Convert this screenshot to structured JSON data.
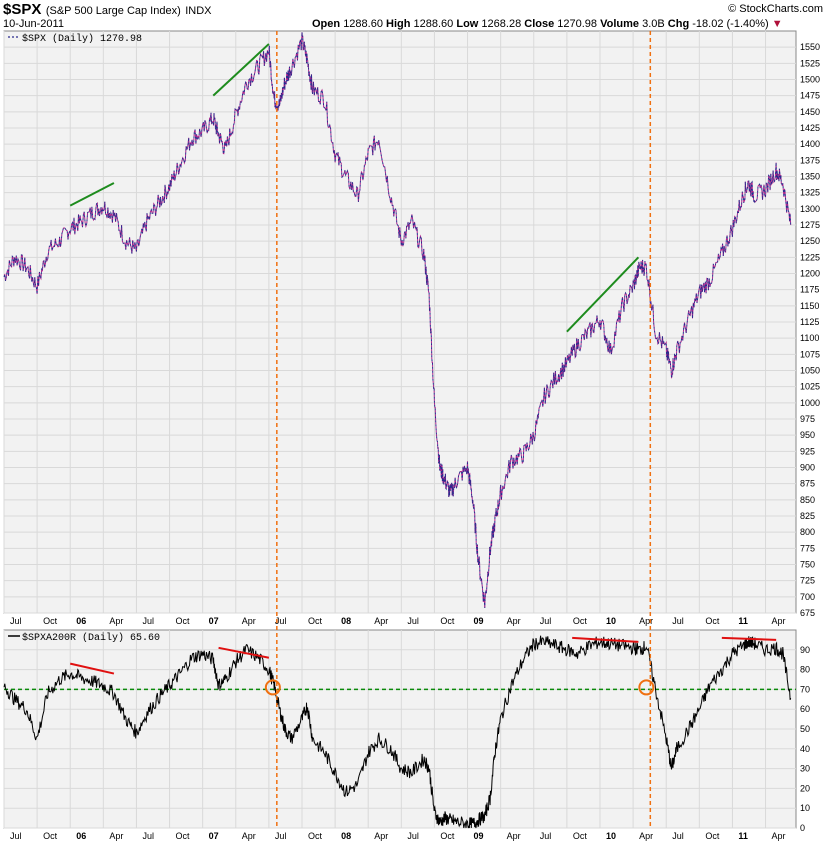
{
  "header": {
    "symbol": "$SPX",
    "description": "(S&P 500 Large Cap Index)",
    "exchange": "INDX",
    "date": "10-Jun-2011",
    "brand": "© StockCharts.com",
    "open_label": "Open",
    "open_value": "1288.60",
    "high_label": "High",
    "high_value": "1288.60",
    "low_label": "Low",
    "low_value": "1268.28",
    "close_label": "Close",
    "close_value": "1270.98",
    "volume_label": "Volume",
    "volume_value": "3.0B",
    "chg_label": "Chg",
    "chg_value": "-18.02 (-1.40%)",
    "chg_arrow": "▼"
  },
  "colors": {
    "panel_bg": "#f2f2f2",
    "grid": "#d9d9d9",
    "price_line": "#2a2a8c",
    "price_line_alt": "#b0208a",
    "breadth_line": "#000000",
    "trend_up": "#1e8c1e",
    "trend_down": "#e01010",
    "threshold": "#0a8a0a",
    "event_line": "#f07010",
    "circle": "#f07010"
  },
  "chart_data": [
    {
      "type": "line",
      "panel": "price",
      "legend": "$SPX (Daily) 1270.98",
      "ylim": [
        675,
        1575
      ],
      "yticks": [
        675,
        700,
        725,
        750,
        775,
        800,
        825,
        850,
        875,
        900,
        925,
        950,
        975,
        1000,
        1025,
        1050,
        1075,
        1100,
        1125,
        1150,
        1175,
        1200,
        1225,
        1250,
        1275,
        1300,
        1325,
        1350,
        1375,
        1400,
        1425,
        1450,
        1475,
        1500,
        1525,
        1550
      ],
      "xlim": [
        2005.5,
        2011.48
      ],
      "series": [
        {
          "x": [
            2005.5,
            2005.58,
            2005.67,
            2005.75,
            2005.83,
            2005.92,
            2006.0,
            2006.08,
            2006.17,
            2006.25,
            2006.33,
            2006.42,
            2006.5,
            2006.58,
            2006.67,
            2006.75,
            2006.83,
            2006.92,
            2007.0,
            2007.08,
            2007.12,
            2007.17,
            2007.25,
            2007.33,
            2007.42,
            2007.5,
            2007.54,
            2007.58,
            2007.62,
            2007.67,
            2007.75,
            2007.79,
            2007.83,
            2007.92,
            2008.0,
            2008.08,
            2008.17,
            2008.25,
            2008.33,
            2008.42,
            2008.5,
            2008.58,
            2008.67,
            2008.71,
            2008.75,
            2008.79,
            2008.83,
            2008.87,
            2008.92,
            2009.0,
            2009.04,
            2009.08,
            2009.13,
            2009.17,
            2009.21,
            2009.25,
            2009.33,
            2009.42,
            2009.5,
            2009.58,
            2009.67,
            2009.75,
            2009.83,
            2009.92,
            2010.0,
            2010.08,
            2010.17,
            2010.25,
            2010.3,
            2010.35,
            2010.42,
            2010.5,
            2010.54,
            2010.58,
            2010.67,
            2010.75,
            2010.83,
            2010.92,
            2011.0,
            2011.08,
            2011.12,
            2011.17,
            2011.25,
            2011.33,
            2011.38,
            2011.44
          ],
          "y": [
            1195,
            1225,
            1210,
            1180,
            1235,
            1250,
            1270,
            1280,
            1295,
            1305,
            1290,
            1250,
            1235,
            1280,
            1310,
            1335,
            1370,
            1410,
            1420,
            1440,
            1415,
            1390,
            1445,
            1495,
            1520,
            1545,
            1470,
            1460,
            1495,
            1520,
            1560,
            1530,
            1485,
            1470,
            1385,
            1350,
            1320,
            1385,
            1410,
            1320,
            1250,
            1280,
            1230,
            1165,
            1000,
            900,
            880,
            860,
            880,
            900,
            850,
            760,
            690,
            770,
            820,
            860,
            910,
            920,
            950,
            1010,
            1040,
            1060,
            1090,
            1110,
            1130,
            1080,
            1150,
            1180,
            1210,
            1210,
            1110,
            1080,
            1050,
            1080,
            1130,
            1170,
            1190,
            1230,
            1270,
            1320,
            1340,
            1320,
            1330,
            1360,
            1340,
            1275
          ]
        }
      ]
    },
    {
      "type": "line",
      "panel": "breadth",
      "legend": "$SPXA200R (Daily) 65.60",
      "ylim": [
        0,
        100
      ],
      "yticks": [
        0,
        10,
        20,
        30,
        40,
        50,
        60,
        70,
        80,
        90
      ],
      "threshold": 70,
      "xlim": [
        2005.5,
        2011.48
      ],
      "series": [
        {
          "x": [
            2005.5,
            2005.58,
            2005.67,
            2005.75,
            2005.83,
            2005.92,
            2006.0,
            2006.08,
            2006.17,
            2006.25,
            2006.33,
            2006.42,
            2006.5,
            2006.58,
            2006.67,
            2006.75,
            2006.83,
            2006.92,
            2007.0,
            2007.08,
            2007.12,
            2007.17,
            2007.25,
            2007.33,
            2007.42,
            2007.5,
            2007.54,
            2007.58,
            2007.62,
            2007.67,
            2007.75,
            2007.79,
            2007.83,
            2007.92,
            2008.0,
            2008.08,
            2008.17,
            2008.25,
            2008.33,
            2008.42,
            2008.5,
            2008.58,
            2008.67,
            2008.71,
            2008.75,
            2008.79,
            2008.83,
            2008.87,
            2008.92,
            2009.0,
            2009.04,
            2009.08,
            2009.13,
            2009.17,
            2009.21,
            2009.25,
            2009.33,
            2009.42,
            2009.5,
            2009.58,
            2009.67,
            2009.75,
            2009.83,
            2009.92,
            2010.0,
            2010.08,
            2010.17,
            2010.25,
            2010.3,
            2010.35,
            2010.42,
            2010.5,
            2010.54,
            2010.58,
            2010.67,
            2010.75,
            2010.83,
            2010.92,
            2011.0,
            2011.08,
            2011.12,
            2011.17,
            2011.25,
            2011.33,
            2011.38,
            2011.44
          ],
          "y": [
            72,
            65,
            60,
            45,
            68,
            75,
            78,
            76,
            74,
            72,
            68,
            55,
            48,
            58,
            66,
            72,
            78,
            86,
            88,
            85,
            72,
            75,
            84,
            90,
            86,
            80,
            72,
            60,
            50,
            45,
            55,
            62,
            45,
            38,
            28,
            18,
            22,
            38,
            45,
            40,
            30,
            28,
            35,
            30,
            8,
            3,
            5,
            4,
            3,
            2,
            2,
            4,
            6,
            15,
            40,
            55,
            72,
            85,
            93,
            94,
            92,
            90,
            88,
            92,
            94,
            93,
            92,
            91,
            90,
            92,
            70,
            45,
            30,
            40,
            50,
            60,
            72,
            80,
            88,
            92,
            94,
            93,
            90,
            91,
            88,
            65.6
          ]
        }
      ]
    }
  ],
  "x_axis_labels": [
    {
      "label": "Jul",
      "t": 2005.5,
      "bold": false
    },
    {
      "label": "Oct",
      "t": 2005.75,
      "bold": false
    },
    {
      "label": "06",
      "t": 2006.0,
      "bold": true
    },
    {
      "label": "Apr",
      "t": 2006.25,
      "bold": false
    },
    {
      "label": "Jul",
      "t": 2006.5,
      "bold": false
    },
    {
      "label": "Oct",
      "t": 2006.75,
      "bold": false
    },
    {
      "label": "07",
      "t": 2007.0,
      "bold": true
    },
    {
      "label": "Apr",
      "t": 2007.25,
      "bold": false
    },
    {
      "label": "Jul",
      "t": 2007.5,
      "bold": false
    },
    {
      "label": "Oct",
      "t": 2007.75,
      "bold": false
    },
    {
      "label": "08",
      "t": 2008.0,
      "bold": true
    },
    {
      "label": "Apr",
      "t": 2008.25,
      "bold": false
    },
    {
      "label": "Jul",
      "t": 2008.5,
      "bold": false
    },
    {
      "label": "Oct",
      "t": 2008.75,
      "bold": false
    },
    {
      "label": "09",
      "t": 2009.0,
      "bold": true
    },
    {
      "label": "Apr",
      "t": 2009.25,
      "bold": false
    },
    {
      "label": "Jul",
      "t": 2009.5,
      "bold": false
    },
    {
      "label": "Oct",
      "t": 2009.75,
      "bold": false
    },
    {
      "label": "10",
      "t": 2010.0,
      "bold": true
    },
    {
      "label": "Apr",
      "t": 2010.25,
      "bold": false
    },
    {
      "label": "Jul",
      "t": 2010.5,
      "bold": false
    },
    {
      "label": "Oct",
      "t": 2010.75,
      "bold": false
    },
    {
      "label": "11",
      "t": 2011.0,
      "bold": true
    },
    {
      "label": "Apr",
      "t": 2011.25,
      "bold": false
    }
  ],
  "annotations": {
    "price_trendlines": [
      {
        "t1": 2006.0,
        "y1": 1305,
        "t2": 2006.33,
        "y2": 1340
      },
      {
        "t1": 2007.08,
        "y1": 1475,
        "t2": 2007.5,
        "y2": 1555
      },
      {
        "t1": 2009.75,
        "y1": 1110,
        "t2": 2010.29,
        "y2": 1225
      }
    ],
    "breadth_trendlines": [
      {
        "t1": 2006.0,
        "y1": 83,
        "t2": 2006.33,
        "y2": 78
      },
      {
        "t1": 2007.12,
        "y1": 91,
        "t2": 2007.5,
        "y2": 86
      },
      {
        "t1": 2009.79,
        "y1": 96,
        "t2": 2010.29,
        "y2": 94
      },
      {
        "t1": 2010.92,
        "y1": 96,
        "t2": 2011.33,
        "y2": 95
      }
    ],
    "event_lines": [
      2007.56,
      2010.38
    ],
    "circles": [
      {
        "t": 2007.53,
        "y": 71
      },
      {
        "t": 2010.35,
        "y": 71
      }
    ]
  }
}
